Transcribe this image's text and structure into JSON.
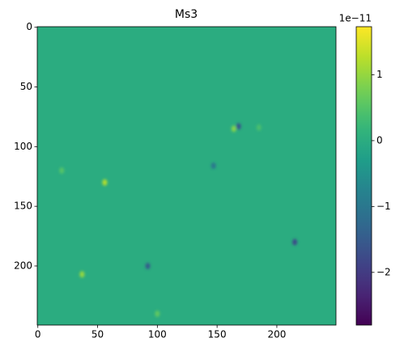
{
  "chart_data": {
    "type": "heatmap",
    "title": "Ms3",
    "colormap": "viridis",
    "xlim": [
      -0.5,
      249.5
    ],
    "ylim": [
      -0.5,
      249.5
    ],
    "xticks": [
      0,
      50,
      100,
      150,
      200
    ],
    "yticks": [
      0,
      50,
      100,
      150,
      200
    ],
    "background": 0,
    "spots": {
      "x": [
        168,
        164,
        147,
        56,
        215,
        92,
        37,
        20,
        185,
        100
      ],
      "y": [
        83,
        85,
        116,
        130,
        180,
        200,
        207,
        120,
        84,
        240
      ],
      "values": [
        -1.6,
        0.9,
        -1.0,
        1.2,
        -1.8,
        -1.5,
        1.0,
        0.5,
        0.4,
        0.6
      ]
    },
    "clim": [
      -2.8,
      1.73
    ],
    "cticks": [
      {
        "value": -2,
        "label": "−2"
      },
      {
        "value": -1,
        "label": "−1"
      },
      0,
      1
    ],
    "c_offset": "1e−11"
  }
}
